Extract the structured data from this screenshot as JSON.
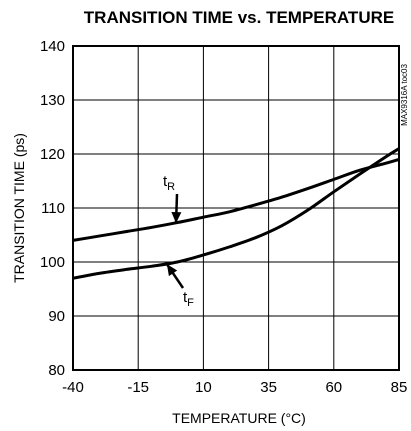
{
  "chart_data": {
    "type": "line",
    "title": "TRANSITION TIME vs. TEMPERATURE",
    "xlabel": "TEMPERATURE (°C)",
    "ylabel": "TRANSITION TIME (ps)",
    "xlim": [
      -40,
      85
    ],
    "ylim": [
      80,
      140
    ],
    "xticks": [
      -40,
      -15,
      10,
      35,
      60,
      85
    ],
    "yticks": [
      80,
      90,
      100,
      110,
      120,
      130,
      140
    ],
    "xtick_labels": [
      "-40",
      "-15",
      "10",
      "35",
      "60",
      "85"
    ],
    "ytick_labels": [
      "80",
      "90",
      "100",
      "110",
      "120",
      "130",
      "140"
    ],
    "grid": true,
    "figure_code": "MAX9316A toc03",
    "series": [
      {
        "name": "tR",
        "label_main": "t",
        "label_sub": "R",
        "x": [
          -40,
          -30,
          -20,
          -10,
          0,
          10,
          20,
          30,
          40,
          50,
          60,
          70,
          80,
          85
        ],
        "y": [
          104.0,
          104.8,
          105.6,
          106.4,
          107.3,
          108.3,
          109.3,
          110.6,
          112.0,
          113.6,
          115.3,
          117.0,
          118.3,
          119.0
        ]
      },
      {
        "name": "tF",
        "label_main": "t",
        "label_sub": "F",
        "x": [
          -40,
          -30,
          -20,
          -10,
          0,
          10,
          20,
          30,
          40,
          50,
          60,
          70,
          80,
          85
        ],
        "y": [
          97.0,
          97.9,
          98.6,
          99.2,
          100.0,
          101.3,
          102.8,
          104.5,
          106.7,
          109.6,
          113.0,
          116.3,
          119.5,
          121.0
        ]
      }
    ]
  }
}
